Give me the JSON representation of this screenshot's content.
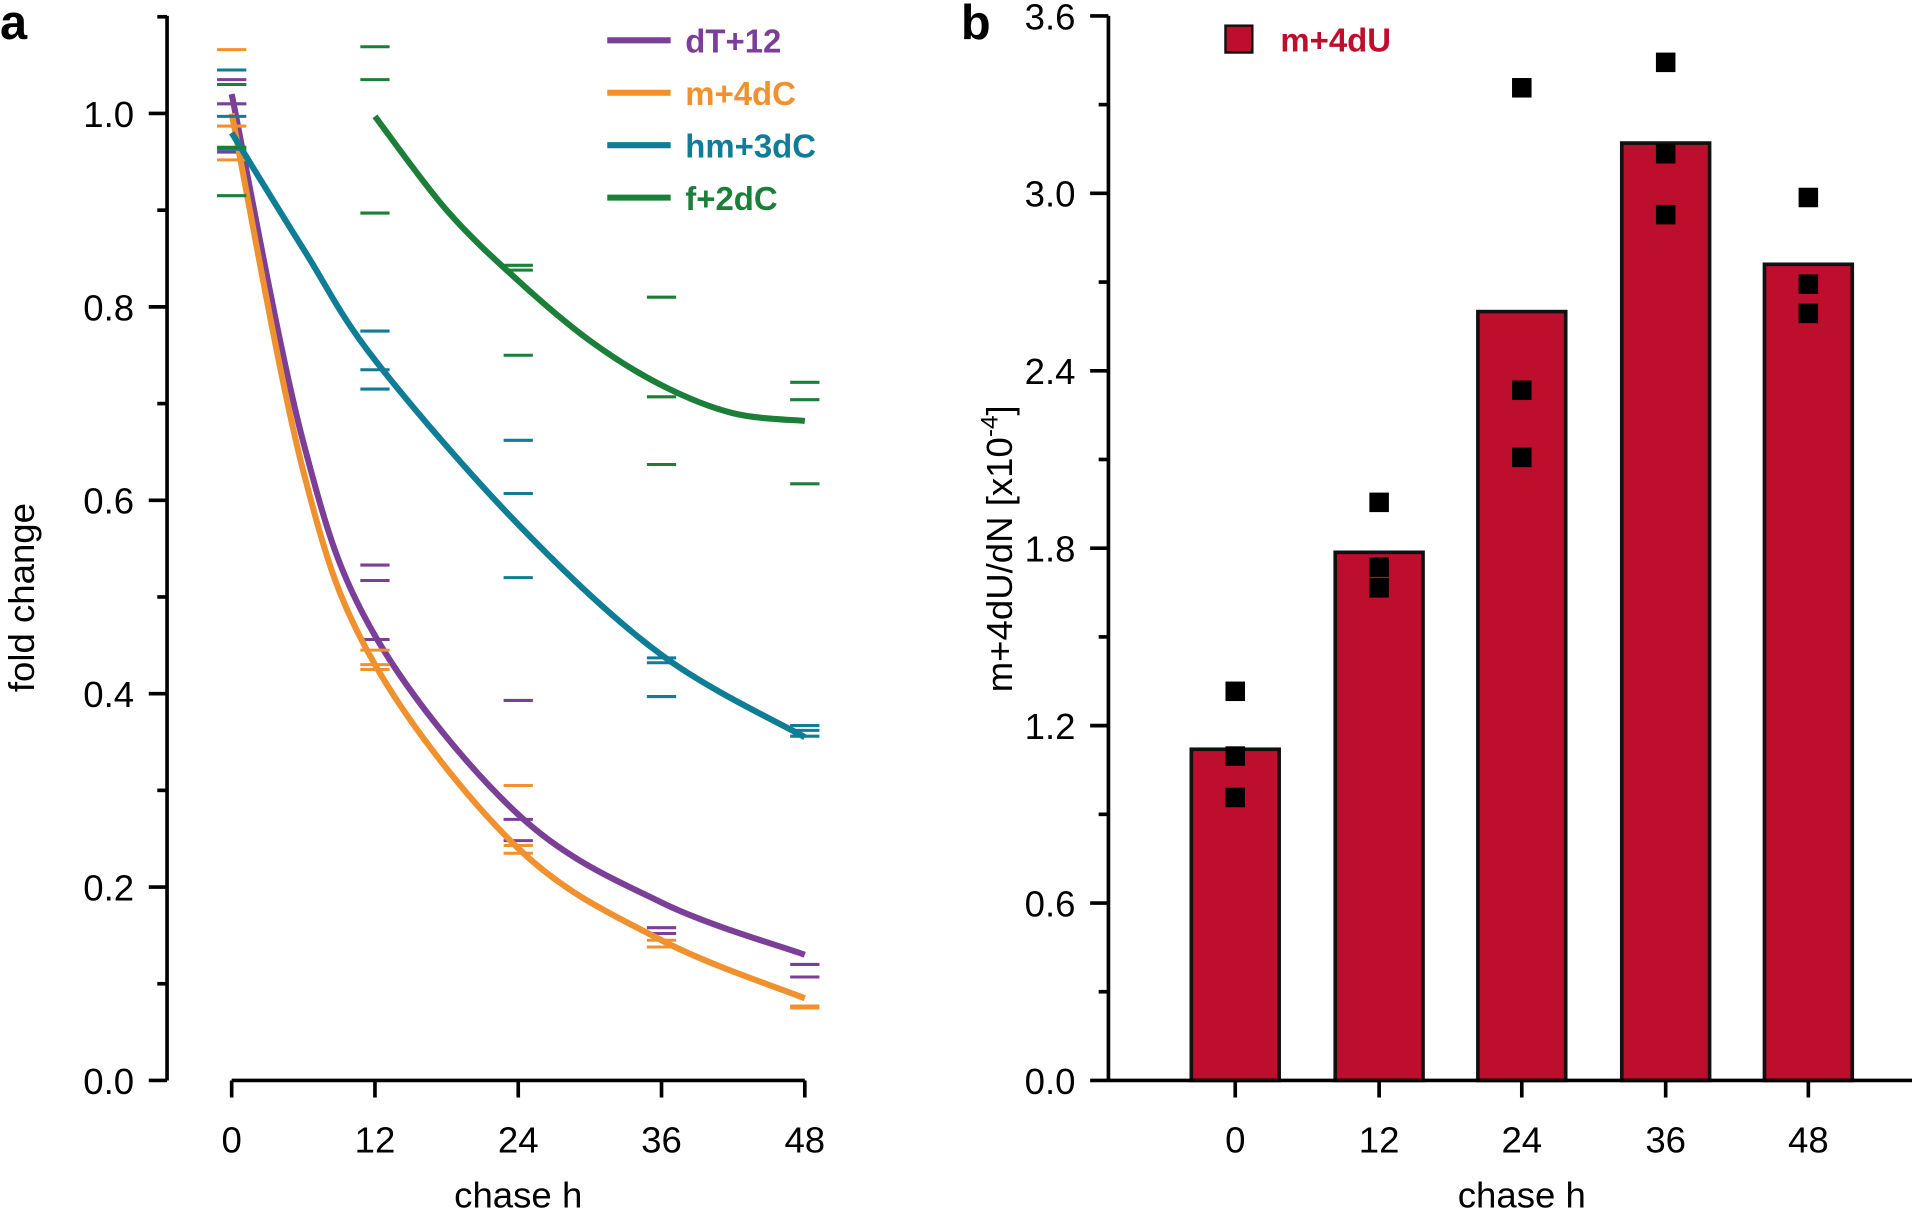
{
  "chart_data": [
    {
      "panel_label": "a",
      "type": "line",
      "xlabel": "chase h",
      "ylabel": "fold change",
      "xlim": [
        0,
        48
      ],
      "ylim": [
        0,
        1.1
      ],
      "xticks": [
        "0",
        "12",
        "24",
        "36",
        "48"
      ],
      "yticks": [
        "0.0",
        "0.2",
        "0.4",
        "0.6",
        "0.8",
        "1.0"
      ],
      "legend_position": "top-right",
      "series": [
        {
          "name": "dT+12",
          "color": "#7b3f98",
          "fit": [
            [
              0,
              1.02
            ],
            [
              6,
              0.66
            ],
            [
              12,
              0.46
            ],
            [
              24,
              0.275
            ],
            [
              36,
              0.184
            ],
            [
              48,
              0.13
            ]
          ],
          "replicates": [
            [
              0,
              1.035
            ],
            [
              0,
              1.01
            ],
            [
              0,
              0.96
            ],
            [
              12,
              0.533
            ],
            [
              12,
              0.517
            ],
            [
              12,
              0.456
            ],
            [
              24,
              0.393
            ],
            [
              24,
              0.27
            ],
            [
              24,
              0.248
            ],
            [
              36,
              0.158
            ],
            [
              36,
              0.152
            ],
            [
              48,
              0.12
            ],
            [
              48,
              0.107
            ]
          ]
        },
        {
          "name": "m+4dC",
          "color": "#f0912f",
          "fit": [
            [
              0,
              1.0
            ],
            [
              6,
              0.63
            ],
            [
              12,
              0.43
            ],
            [
              24,
              0.24
            ],
            [
              36,
              0.145
            ],
            [
              48,
              0.085
            ]
          ],
          "replicates": [
            [
              0,
              1.066
            ],
            [
              0,
              0.987
            ],
            [
              0,
              0.952
            ],
            [
              12,
              0.445
            ],
            [
              12,
              0.43
            ],
            [
              12,
              0.425
            ],
            [
              24,
              0.305
            ],
            [
              24,
              0.243
            ],
            [
              24,
              0.235
            ],
            [
              36,
              0.145
            ],
            [
              36,
              0.138
            ],
            [
              48,
              0.077
            ],
            [
              48,
              0.075
            ]
          ]
        },
        {
          "name": "hm+3dC",
          "color": "#0f7d96",
          "fit": [
            [
              0,
              0.98
            ],
            [
              6,
              0.86
            ],
            [
              12,
              0.745
            ],
            [
              24,
              0.575
            ],
            [
              36,
              0.44
            ],
            [
              48,
              0.355
            ]
          ],
          "replicates": [
            [
              0,
              1.045
            ],
            [
              0,
              0.997
            ],
            [
              0,
              0.963
            ],
            [
              12,
              0.775
            ],
            [
              12,
              0.735
            ],
            [
              12,
              0.715
            ],
            [
              24,
              0.662
            ],
            [
              24,
              0.607
            ],
            [
              24,
              0.52
            ],
            [
              36,
              0.437
            ],
            [
              36,
              0.432
            ],
            [
              36,
              0.397
            ],
            [
              48,
              0.367
            ],
            [
              48,
              0.362
            ],
            [
              48,
              0.356
            ]
          ]
        },
        {
          "name": "f+2dC",
          "color": "#1b7f3a",
          "fit": [
            [
              12,
              0.997
            ],
            [
              18,
              0.9
            ],
            [
              24,
              0.827
            ],
            [
              30,
              0.765
            ],
            [
              36,
              0.719
            ],
            [
              42,
              0.69
            ],
            [
              48,
              0.682
            ]
          ],
          "replicates": [
            [
              0,
              1.03
            ],
            [
              0,
              0.965
            ],
            [
              0,
              0.915
            ],
            [
              12,
              1.069
            ],
            [
              12,
              1.035
            ],
            [
              12,
              0.897
            ],
            [
              24,
              0.843
            ],
            [
              24,
              0.838
            ],
            [
              24,
              0.75
            ],
            [
              36,
              0.81
            ],
            [
              36,
              0.707
            ],
            [
              36,
              0.637
            ],
            [
              48,
              0.722
            ],
            [
              48,
              0.704
            ],
            [
              48,
              0.617
            ]
          ]
        }
      ]
    },
    {
      "panel_label": "b",
      "type": "bar",
      "xlabel": "chase h",
      "ylabel": "m+4dU/dN [x10",
      "ylabel_exp": "-4",
      "ylabel_end": "]",
      "ylim": [
        0,
        3.6
      ],
      "yticks": [
        "0.0",
        "0.6",
        "1.2",
        "1.8",
        "2.4",
        "3.0",
        "3.6"
      ],
      "categories": [
        "0",
        "12",
        "24",
        "36",
        "48"
      ],
      "legend_position": "top-left",
      "series": [
        {
          "name": "m+4dU",
          "color": "#be0e2d",
          "values": [
            1.12,
            1.786,
            2.6,
            3.17,
            2.76
          ],
          "replicates": [
            [
              1.316,
              1.097,
              0.957
            ],
            [
              1.955,
              1.736,
              1.666
            ],
            [
              3.357,
              2.334,
              2.107
            ],
            [
              3.443,
              3.134,
              2.928
            ],
            [
              2.986,
              2.693,
              2.594
            ]
          ]
        }
      ]
    }
  ]
}
